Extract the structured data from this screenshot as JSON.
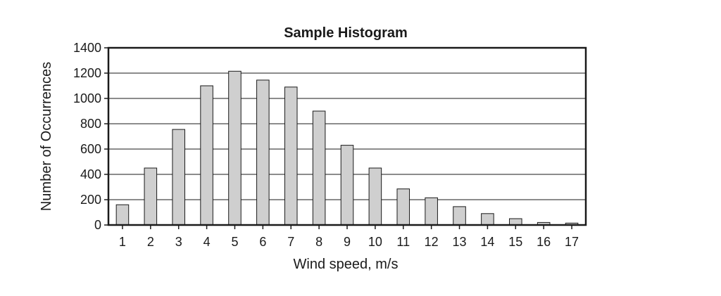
{
  "chart_data": {
    "type": "bar",
    "title": "Sample Histogram",
    "xlabel": "Wind speed, m/s",
    "ylabel": "Number of Occurrences",
    "categories": [
      "1",
      "2",
      "3",
      "4",
      "5",
      "6",
      "7",
      "8",
      "9",
      "10",
      "11",
      "12",
      "13",
      "14",
      "15",
      "16",
      "17"
    ],
    "values": [
      160,
      450,
      755,
      1100,
      1215,
      1145,
      1090,
      900,
      630,
      450,
      285,
      215,
      145,
      90,
      50,
      20,
      15
    ],
    "ylim": [
      0,
      1400
    ],
    "yticks": [
      "0",
      "200",
      "400",
      "600",
      "800",
      "1000",
      "1200",
      "1400"
    ],
    "grid": true,
    "legend": "none"
  },
  "colors": {
    "bar_fill": "#cfcfcf",
    "ink": "#1a1a1a"
  }
}
